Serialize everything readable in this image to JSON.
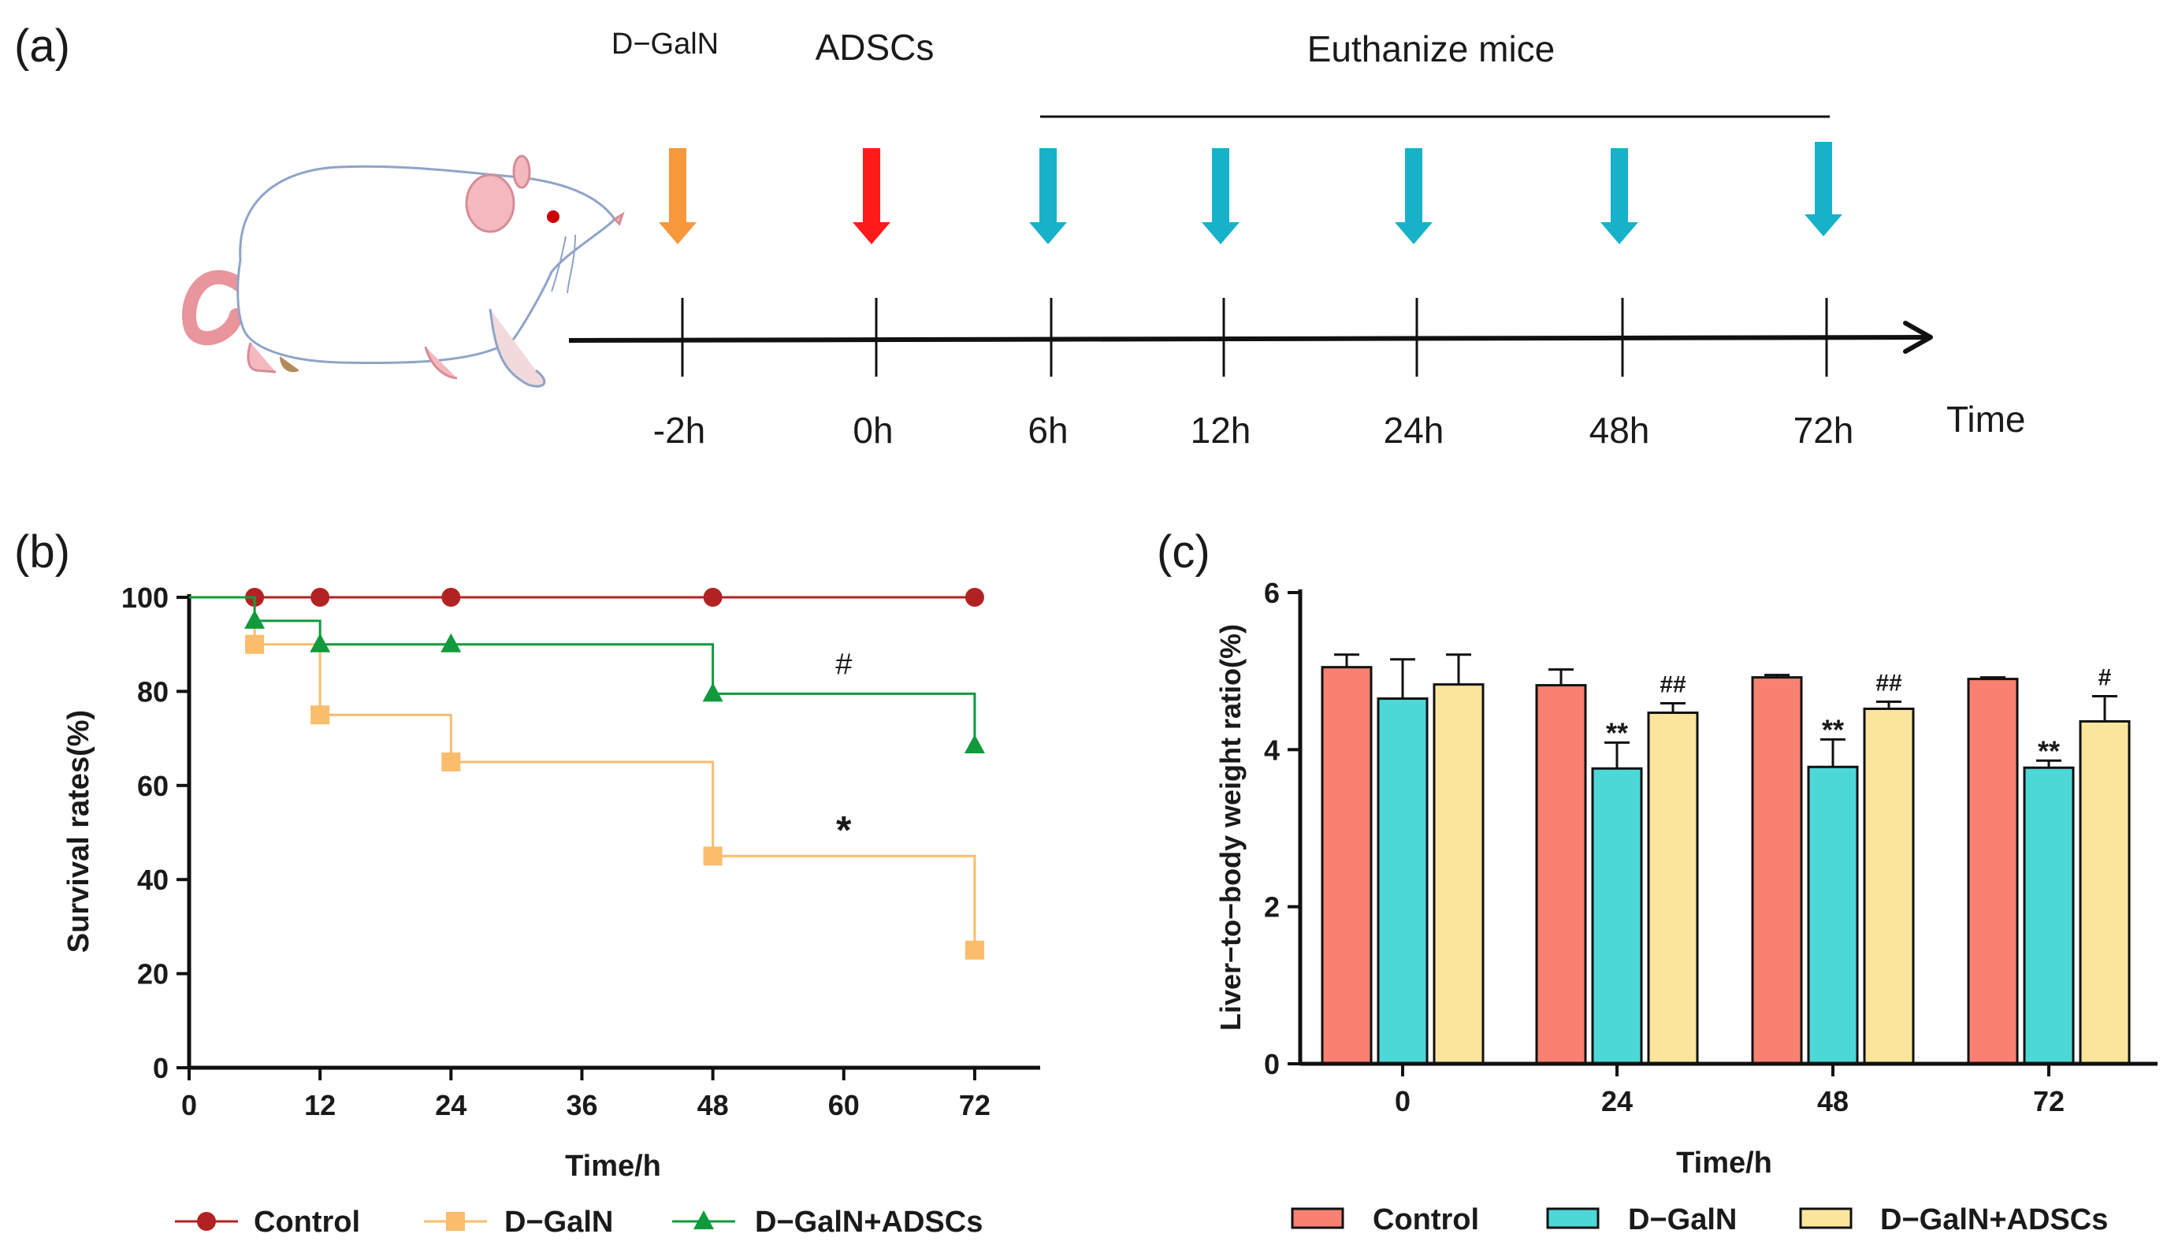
{
  "panel_a": {
    "label": "(a)",
    "events": [
      {
        "name": "D−GalN",
        "color": "#f7983b"
      },
      {
        "name": "ADSCs",
        "color": "#ff1a1a"
      },
      {
        "name": "Euthanize mice",
        "color": "#17b2c9"
      }
    ],
    "timepoints": [
      "-2h",
      "0h",
      "6h",
      "12h",
      "24h",
      "48h",
      "72h"
    ],
    "axis_label": "Time"
  },
  "chart_data": [
    {
      "panel": "(b)",
      "type": "line",
      "title": "",
      "xlabel": "Time/h",
      "ylabel": "Survival rates(%)",
      "xlim": [
        0,
        78
      ],
      "ylim": [
        0,
        100
      ],
      "xticks": [
        0,
        12,
        24,
        36,
        48,
        60,
        72
      ],
      "yticks": [
        0,
        20,
        40,
        60,
        80,
        100
      ],
      "series": [
        {
          "name": "Control",
          "color": "#b22222",
          "marker": "circle",
          "x": [
            6,
            12,
            24,
            48,
            72
          ],
          "y": [
            100,
            100,
            100,
            100,
            100
          ]
        },
        {
          "name": "D−GalN",
          "color": "#f9bd6b",
          "marker": "square",
          "x": [
            6,
            12,
            24,
            48,
            72
          ],
          "y": [
            90,
            75,
            65,
            45,
            25
          ]
        },
        {
          "name": "D−GalN+ADSCs",
          "color": "#119a3c",
          "marker": "triangle",
          "x": [
            6,
            12,
            24,
            48,
            72
          ],
          "y": [
            95,
            90,
            90,
            79.5,
            68.5
          ]
        }
      ],
      "annotations": [
        {
          "text": "#",
          "x": 60,
          "y": 86
        },
        {
          "text": "*",
          "x": 60,
          "y": 50
        }
      ]
    },
    {
      "panel": "(c)",
      "type": "bar",
      "title": "",
      "xlabel": "Time/h",
      "ylabel": "Liver−to−body weight ratio(%)",
      "ylim": [
        0,
        6
      ],
      "yticks": [
        0,
        2,
        4,
        6
      ],
      "categories": [
        "0",
        "24",
        "48",
        "72"
      ],
      "series": [
        {
          "name": "Control",
          "color": "#f98171",
          "values": [
            5.05,
            4.82,
            4.92,
            4.9
          ],
          "errors": [
            0.16,
            0.2,
            0.03,
            0.02
          ],
          "marks": [
            "",
            "",
            "",
            ""
          ]
        },
        {
          "name": "D−GalN",
          "color": "#4dd8d8",
          "values": [
            4.65,
            3.76,
            3.78,
            3.77
          ],
          "errors": [
            0.5,
            0.33,
            0.35,
            0.09
          ],
          "marks": [
            "",
            "**",
            "**",
            "**"
          ]
        },
        {
          "name": "D−GalN+ADSCs",
          "color": "#fbe59c",
          "values": [
            4.83,
            4.47,
            4.52,
            4.36
          ],
          "errors": [
            0.38,
            0.12,
            0.09,
            0.32
          ],
          "marks": [
            "",
            "##",
            "##",
            "#"
          ]
        }
      ]
    }
  ]
}
